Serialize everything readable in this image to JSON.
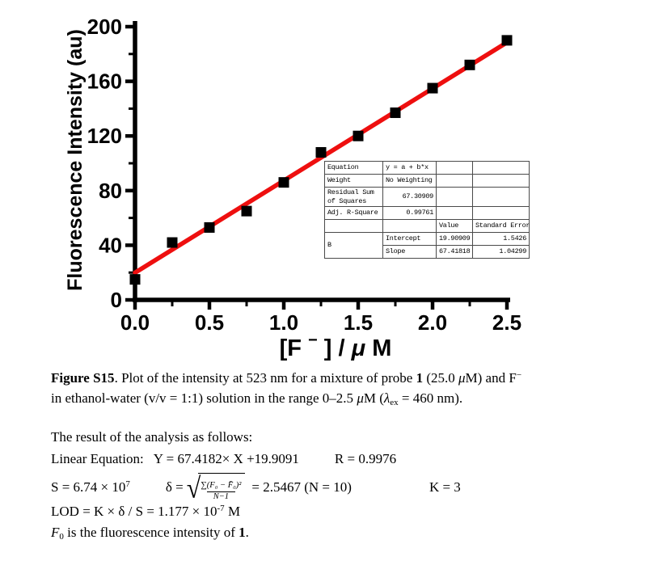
{
  "chart": {
    "ylabel": "Fluorescence Intensity (au)",
    "xlabel_p1": "[F",
    "xlabel_sup": "−",
    "xlabel_p2": "] / ",
    "xlabel_mu": "μ",
    "xlabel_p3": "M"
  },
  "chart_data": {
    "type": "scatter",
    "title": "",
    "xlabel": "[F⁻] / μM",
    "ylabel": "Fluorescence Intensity (au)",
    "x": [
      0,
      0.25,
      0.5,
      0.75,
      1.0,
      1.25,
      1.5,
      1.75,
      2.0,
      2.25,
      2.5
    ],
    "y": [
      15,
      42,
      53,
      65,
      86,
      108,
      120,
      137,
      155,
      172,
      190
    ],
    "marker": "square",
    "marker_color": "#000000",
    "axis_color": "#000000",
    "grid": false,
    "xlim": [
      0,
      2.5
    ],
    "ylim": [
      0,
      200
    ],
    "x_major_ticks": [
      0,
      0.5,
      1.0,
      1.5,
      2.0,
      2.5
    ],
    "x_minor_ticks": [
      0.25,
      0.75,
      1.25,
      1.75,
      2.25
    ],
    "y_major_ticks": [
      0,
      40,
      80,
      120,
      160,
      200
    ],
    "y_minor_ticks": [
      20,
      60,
      100,
      140,
      180
    ],
    "x_tick_labels": [
      "0.0",
      "0.5",
      "1.0",
      "1.5",
      "2.0",
      "2.5"
    ],
    "y_tick_labels": [
      "0",
      "40",
      "80",
      "120",
      "160",
      "200"
    ],
    "fit_line": {
      "equation": "y = 19.9091 + 67.4182x",
      "intercept": 19.9091,
      "slope": 67.4182,
      "x_start": 0,
      "x_end": 2.5,
      "color": "#ee0f0f"
    }
  },
  "inset_table": {
    "cells": [
      [
        "Equation",
        "y = a + b*x",
        "",
        ""
      ],
      [
        "Weight",
        "No Weighting",
        "",
        ""
      ],
      [
        "Residual Sum of Squares",
        "67.30909",
        "",
        ""
      ],
      [
        "Adj. R-Square",
        "0.99761",
        "",
        ""
      ],
      [
        "",
        "",
        "Value",
        "Standard Error"
      ],
      [
        "B",
        "Intercept",
        "19.90909",
        "1.5426"
      ],
      [
        "",
        "Slope",
        "67.41818",
        "1.04299"
      ]
    ]
  },
  "caption": {
    "tag": "Figure S15",
    "after_tag": ". Plot of the intensity at 523 nm for a mixture of probe ",
    "probe_bold": "1",
    "mid": " (25.0 ",
    "mu1": "μ",
    "after_mu1": "M) and F",
    "f_sup": "−",
    "line2_start": "in ethanol-water (v/v = 1:1) solution in the range 0–2.5 ",
    "mu2": "μ",
    "after_mu2": "M (",
    "lambda": "λ",
    "lambda_sub": "ex",
    "line2_end": " = 460 nm)."
  },
  "analysis": {
    "result_line": "The result of the analysis as follows:",
    "linear_label": "Linear Equation:",
    "linear_equation": "Y = 67.4182× X +19.9091",
    "r_value": "R = 0.9976",
    "s_base": "S = 6.74 × 10",
    "s_exp": "7",
    "delta_lhs": "δ =",
    "sqrt_numerator": "∑(F₀ − F̄₀)²",
    "sqrt_denominator": "N−1",
    "delta_rhs": "= 2.5467 (N = 10)",
    "k_value": "K = 3",
    "lod_base": "LOD = K × δ / S = 1.177 × 10",
    "lod_exp": "-7",
    "lod_unit": " M",
    "f0_f": "F",
    "f0_sub": "0",
    "f0_rest": " is the fluorescence intensity of ",
    "f0_bold": "1",
    "f0_period": "."
  }
}
